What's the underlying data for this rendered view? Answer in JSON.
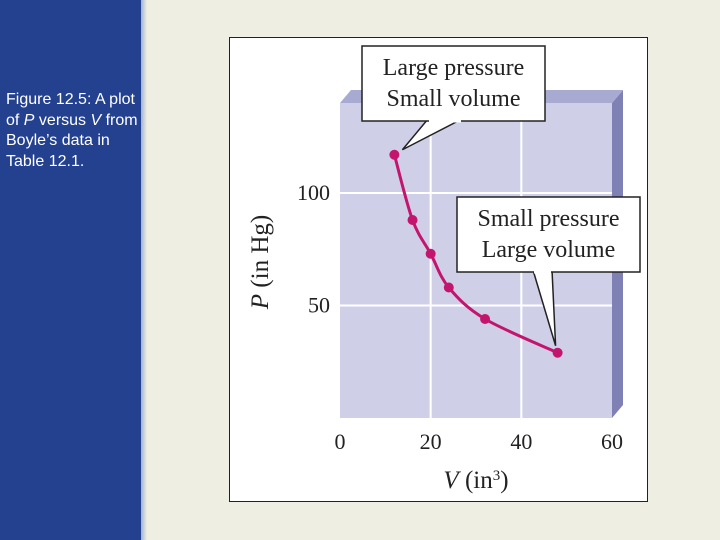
{
  "caption": {
    "prefix": "Figure 12.5: A plot of ",
    "var_p": "P",
    "middle1": " versus ",
    "var_v": "V",
    "suffix": " from Boyle’s data in Table 12.1."
  },
  "colors": {
    "panel": "#24418f",
    "background": "#efeee2",
    "plot_area": "#cfd0e8",
    "plot_side": "#7f80b4",
    "grid": "#ffffff",
    "curve": "#c4156e"
  },
  "chart_data": {
    "type": "line",
    "x": [
      12,
      16,
      20,
      24,
      32,
      48
    ],
    "y": [
      117,
      88,
      73,
      58,
      44,
      29
    ],
    "xlabel": {
      "var": "V",
      "unit": " (in",
      "exp": "3",
      "close": ")"
    },
    "ylabel": {
      "var": "P",
      "unit": " (in Hg)"
    },
    "xlim": [
      0,
      60
    ],
    "ylim": [
      0,
      140
    ],
    "xticks": [
      0,
      20,
      40,
      60
    ],
    "yticks": [
      50,
      100
    ],
    "grid": true,
    "annotations": [
      {
        "lines": [
          "Large pressure",
          "Small volume"
        ],
        "x": 12,
        "y": 117
      },
      {
        "lines": [
          "Small pressure",
          "Large volume"
        ],
        "x": 48,
        "y": 29
      }
    ]
  }
}
